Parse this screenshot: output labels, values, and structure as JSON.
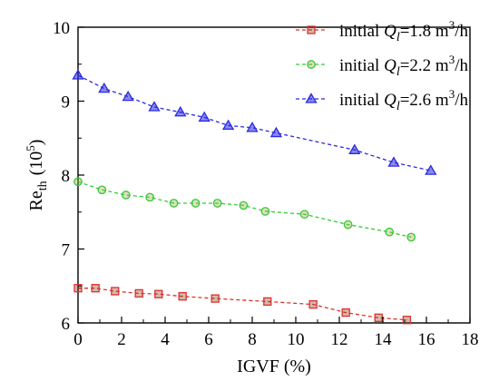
{
  "chart_data": {
    "type": "line",
    "xlabel": "IGVF (%)",
    "ylabel_main": "Re",
    "ylabel_sub": "th",
    "ylabel_paren_open": "(10",
    "ylabel_exp": "5",
    "ylabel_paren_close": ")",
    "xlim": [
      0,
      18
    ],
    "ylim": [
      6,
      10
    ],
    "x_ticks": [
      "0",
      "2",
      "4",
      "6",
      "8",
      "10",
      "12",
      "14",
      "16",
      "18"
    ],
    "y_ticks": [
      "6",
      "7",
      "8",
      "9",
      "10"
    ],
    "grid": false,
    "legend_placement": "top-right",
    "series": [
      {
        "name": "initial Q_l=1.8 m3/h",
        "legend_prefix": "initial ",
        "legend_q": "Q",
        "legend_sub": "l",
        "legend_value": "=1.8 m",
        "legend_exp": "3",
        "legend_unit": "/h",
        "color": "#e0302a",
        "marker_fill": "#7a3a1a",
        "marker": "square",
        "x": [
          0.0,
          0.8,
          1.7,
          2.8,
          3.7,
          4.8,
          6.3,
          8.7,
          10.8,
          12.3,
          13.8,
          15.1
        ],
        "y": [
          6.47,
          6.47,
          6.43,
          6.4,
          6.39,
          6.36,
          6.33,
          6.29,
          6.25,
          6.14,
          6.07,
          6.04
        ]
      },
      {
        "name": "initial Q_l=2.2 m3/h",
        "legend_prefix": "initial ",
        "legend_q": "Q",
        "legend_sub": "l",
        "legend_value": "=2.2 m",
        "legend_exp": "3",
        "legend_unit": "/h",
        "color": "#33cc33",
        "marker_fill": "#a0a050",
        "marker": "circle",
        "x": [
          0.0,
          1.1,
          2.2,
          3.3,
          4.4,
          5.4,
          6.4,
          7.6,
          8.6,
          10.4,
          12.4,
          14.3,
          15.3
        ],
        "y": [
          7.91,
          7.8,
          7.73,
          7.7,
          7.62,
          7.62,
          7.62,
          7.59,
          7.51,
          7.47,
          7.33,
          7.23,
          7.16
        ]
      },
      {
        "name": "initial Q_l=2.6 m3/h",
        "legend_prefix": "initial ",
        "legend_q": "Q",
        "legend_sub": "l",
        "legend_value": "=2.6 m",
        "legend_exp": "3",
        "legend_unit": "/h",
        "color": "#2a2ae0",
        "marker_fill": "#2a2ae0",
        "marker": "triangle",
        "x": [
          0.0,
          1.2,
          2.3,
          3.5,
          4.7,
          5.8,
          6.9,
          8.0,
          9.1,
          12.7,
          14.5,
          16.2
        ],
        "y": [
          9.35,
          9.17,
          9.06,
          8.92,
          8.85,
          8.78,
          8.67,
          8.64,
          8.57,
          8.34,
          8.17,
          8.06
        ]
      }
    ]
  }
}
